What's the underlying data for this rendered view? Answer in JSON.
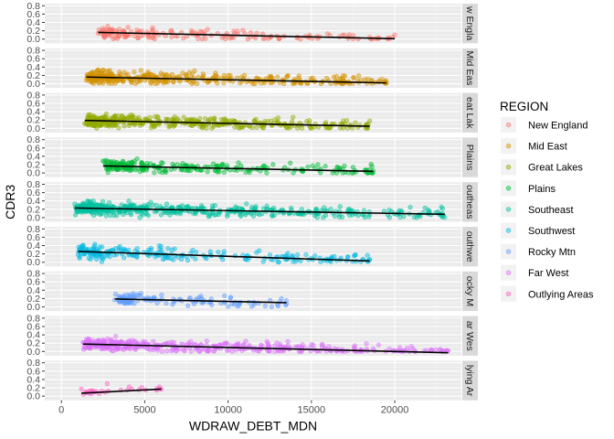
{
  "chart_data": {
    "type": "scatter",
    "subtype": "faceted scatter with fitted regression line per facet",
    "xlabel": "WDRAW_DEBT_MDN",
    "ylabel": "CDR3",
    "xlim": [
      -1000,
      24000
    ],
    "ylim": [
      -0.1,
      0.85
    ],
    "x_ticks": [
      0,
      5000,
      10000,
      15000,
      20000
    ],
    "x_tick_labels": [
      "0",
      "5000",
      "10000",
      "15000",
      "20000"
    ],
    "y_ticks": [
      0.0,
      0.2,
      0.4,
      0.6,
      0.8
    ],
    "y_tick_labels": [
      "0.0",
      "0.2",
      "0.4",
      "0.6",
      "0.8"
    ],
    "grid": true,
    "legend": {
      "title": "REGION",
      "placement": "right",
      "entries": [
        "New England",
        "Mid East",
        "Great Lakes",
        "Plains",
        "Southeast",
        "Southwest",
        "Rocky Mtn",
        "Far West",
        "Outlying Areas"
      ]
    },
    "facets": [
      {
        "label": "New England",
        "strip_text": "w Engla",
        "color": "#F8766D",
        "x_range": [
          2200,
          20000
        ],
        "fit": [
          0.16,
          0.01
        ],
        "n": 180,
        "seed": 11
      },
      {
        "label": "Mid East",
        "strip_text": "Mid Eas",
        "color": "#D39200",
        "x_range": [
          1500,
          19500
        ],
        "fit": [
          0.16,
          0.02
        ],
        "n": 420,
        "seed": 23
      },
      {
        "label": "Great Lakes",
        "strip_text": "eat Lak",
        "color": "#93AA00",
        "x_range": [
          1400,
          18500
        ],
        "fit": [
          0.19,
          0.05
        ],
        "n": 420,
        "seed": 37
      },
      {
        "label": "Plains",
        "strip_text": "Plains",
        "color": "#00BA38",
        "x_range": [
          2500,
          18700
        ],
        "fit": [
          0.17,
          0.04
        ],
        "n": 260,
        "seed": 41
      },
      {
        "label": "Southeast",
        "strip_text": "outheas",
        "color": "#00C19F",
        "x_range": [
          800,
          23000
        ],
        "fit": [
          0.23,
          0.08
        ],
        "n": 520,
        "seed": 53
      },
      {
        "label": "Southwest",
        "strip_text": "outhwe",
        "color": "#00B9E3",
        "x_range": [
          1000,
          18500
        ],
        "fit": [
          0.26,
          0.03
        ],
        "n": 230,
        "seed": 67
      },
      {
        "label": "Rocky Mtn",
        "strip_text": "ocky M",
        "color": "#619CFF",
        "x_range": [
          3200,
          13500
        ],
        "fit": [
          0.19,
          0.1
        ],
        "n": 130,
        "seed": 71
      },
      {
        "label": "Far West",
        "strip_text": "ar Wes",
        "color": "#DB72FB",
        "x_range": [
          1300,
          23200
        ],
        "fit": [
          0.18,
          -0.03
        ],
        "n": 420,
        "seed": 83
      },
      {
        "label": "Outlying Areas",
        "strip_text": "lying Ar",
        "color": "#FF61C3",
        "x_range": [
          1200,
          6000
        ],
        "fit": [
          0.07,
          0.17
        ],
        "n": 30,
        "seed": 97
      }
    ]
  }
}
